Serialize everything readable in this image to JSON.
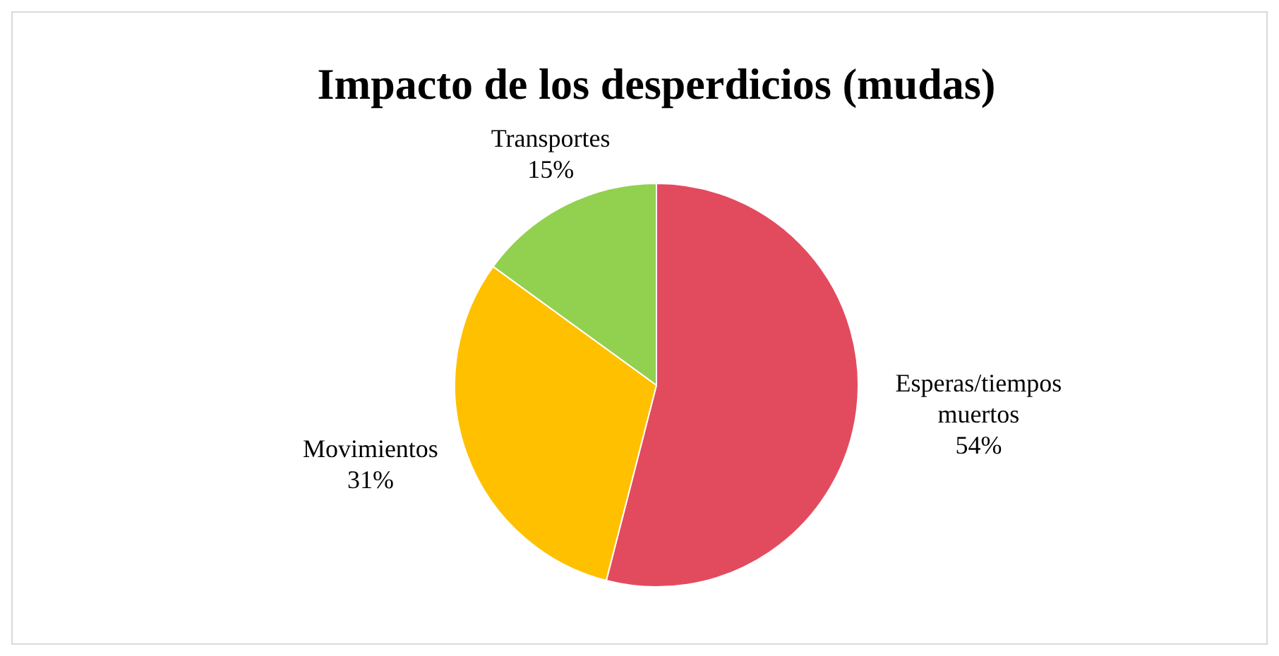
{
  "chart_data": {
    "type": "pie",
    "title": "Impacto de los desperdicios (mudas)",
    "categories": [
      "Esperas/tiempos muertos",
      "Movimientos",
      "Transportes"
    ],
    "values": [
      54,
      31,
      15
    ],
    "colors": [
      "#e24b5e",
      "#ffc000",
      "#92d050"
    ],
    "value_labels": [
      "54%",
      "31%",
      "15%"
    ]
  }
}
